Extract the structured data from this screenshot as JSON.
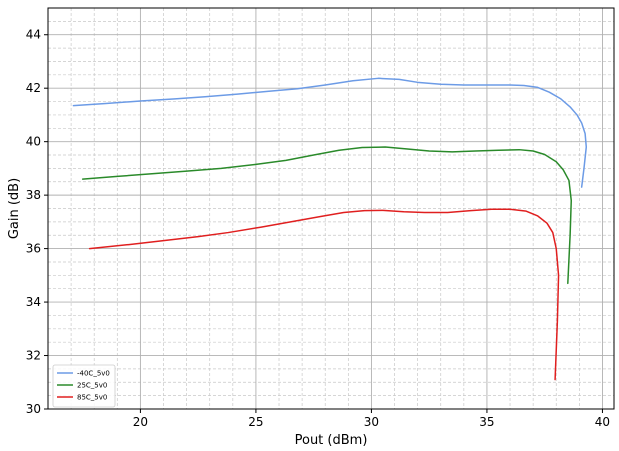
{
  "chart_data": {
    "type": "line",
    "title": "",
    "xlabel": "Pout (dBm)",
    "ylabel": "Gain (dB)",
    "xlim": [
      16,
      40.5
    ],
    "ylim": [
      30,
      45
    ],
    "xticks": [
      20,
      25,
      30,
      35,
      40
    ],
    "yticks": [
      30,
      32,
      34,
      36,
      38,
      40,
      42,
      44
    ],
    "grid": true,
    "minor_grid": true,
    "legend_position": "bottom-left",
    "series": [
      {
        "name": "-40C_5v0",
        "color": "#6c9be6",
        "x": [
          17.1,
          18.5,
          20.0,
          21.5,
          22.8,
          24.2,
          25.5,
          26.8,
          28.0,
          29.2,
          30.3,
          31.2,
          32.0,
          33.0,
          34.0,
          35.0,
          36.0,
          36.6,
          37.2,
          37.7,
          38.2,
          38.6,
          38.9,
          39.1,
          39.25,
          39.3,
          39.2,
          39.1
        ],
        "y": [
          41.35,
          41.43,
          41.52,
          41.6,
          41.68,
          41.78,
          41.88,
          41.98,
          42.12,
          42.28,
          42.37,
          42.33,
          42.22,
          42.15,
          42.12,
          42.12,
          42.12,
          42.1,
          42.03,
          41.85,
          41.6,
          41.3,
          41.0,
          40.7,
          40.3,
          39.8,
          39.0,
          38.3
        ]
      },
      {
        "name": "25C_5v0",
        "color": "#2a8a2a",
        "x": [
          17.5,
          19.0,
          20.5,
          22.0,
          23.5,
          25.0,
          26.3,
          27.5,
          28.6,
          29.6,
          30.6,
          31.5,
          32.5,
          33.5,
          34.5,
          35.5,
          36.4,
          37.0,
          37.5,
          38.0,
          38.3,
          38.55,
          38.65,
          38.6,
          38.5
        ],
        "y": [
          38.6,
          38.7,
          38.8,
          38.9,
          39.0,
          39.15,
          39.3,
          39.5,
          39.68,
          39.78,
          39.8,
          39.73,
          39.65,
          39.62,
          39.65,
          39.68,
          39.7,
          39.65,
          39.52,
          39.25,
          38.95,
          38.55,
          37.8,
          36.5,
          34.7
        ]
      },
      {
        "name": "85C_5v0",
        "color": "#e01f1f",
        "x": [
          17.8,
          19.5,
          21.0,
          22.5,
          23.8,
          25.2,
          26.5,
          27.8,
          28.8,
          29.7,
          30.5,
          31.4,
          32.3,
          33.3,
          34.3,
          35.2,
          36.0,
          36.7,
          37.2,
          37.6,
          37.85,
          38.0,
          38.1,
          38.05,
          37.95
        ],
        "y": [
          36.0,
          36.15,
          36.3,
          36.45,
          36.6,
          36.8,
          37.0,
          37.2,
          37.35,
          37.42,
          37.43,
          37.38,
          37.35,
          37.35,
          37.42,
          37.47,
          37.47,
          37.4,
          37.22,
          36.95,
          36.6,
          36.0,
          35.0,
          33.3,
          31.1
        ]
      }
    ]
  }
}
